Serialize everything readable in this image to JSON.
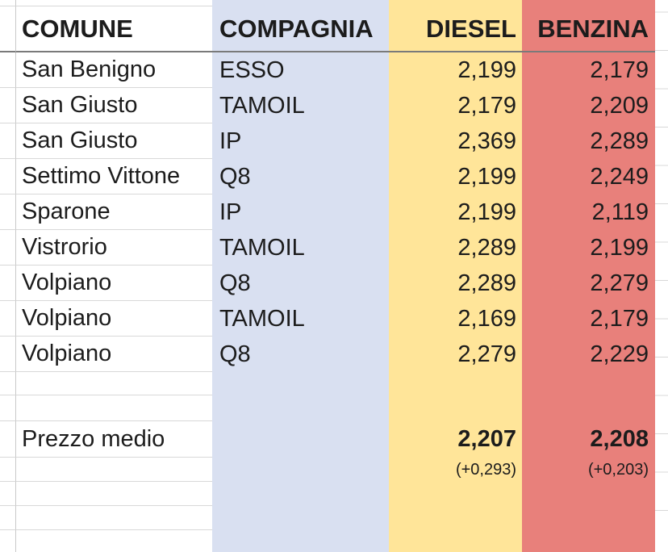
{
  "sheet": {
    "columns": {
      "comune_label": "COMUNE",
      "compagnia_label": "COMPAGNIA",
      "diesel_label": "DIESEL",
      "benzina_label": "BENZINA"
    },
    "rows": [
      {
        "comune": "San Benigno",
        "compagnia": "ESSO",
        "diesel": "2,199",
        "benzina": "2,179"
      },
      {
        "comune": "San Giusto",
        "compagnia": "TAMOIL",
        "diesel": "2,179",
        "benzina": "2,209"
      },
      {
        "comune": "San Giusto",
        "compagnia": "IP",
        "diesel": "2,369",
        "benzina": "2,289"
      },
      {
        "comune": "Settimo Vittone",
        "compagnia": "Q8",
        "diesel": "2,199",
        "benzina": "2,249"
      },
      {
        "comune": "Sparone",
        "compagnia": "IP",
        "diesel": "2,199",
        "benzina": "2,119"
      },
      {
        "comune": "Vistrorio",
        "compagnia": "TAMOIL",
        "diesel": "2,289",
        "benzina": "2,199"
      },
      {
        "comune": "Volpiano",
        "compagnia": "Q8",
        "diesel": "2,289",
        "benzina": "2,279"
      },
      {
        "comune": "Volpiano",
        "compagnia": "TAMOIL",
        "diesel": "2,169",
        "benzina": "2,179"
      },
      {
        "comune": "Volpiano",
        "compagnia": "Q8",
        "diesel": "2,279",
        "benzina": "2,229"
      }
    ],
    "summary": {
      "label": "Prezzo medio",
      "diesel_avg": "2,207",
      "benzina_avg": "2,208",
      "diesel_delta": "(+0,293)",
      "benzina_delta": "(+0,203)"
    },
    "colors": {
      "compagnia_bg": "#d9e0f1",
      "diesel_bg": "#ffe599",
      "benzina_bg": "#e8807b"
    }
  }
}
